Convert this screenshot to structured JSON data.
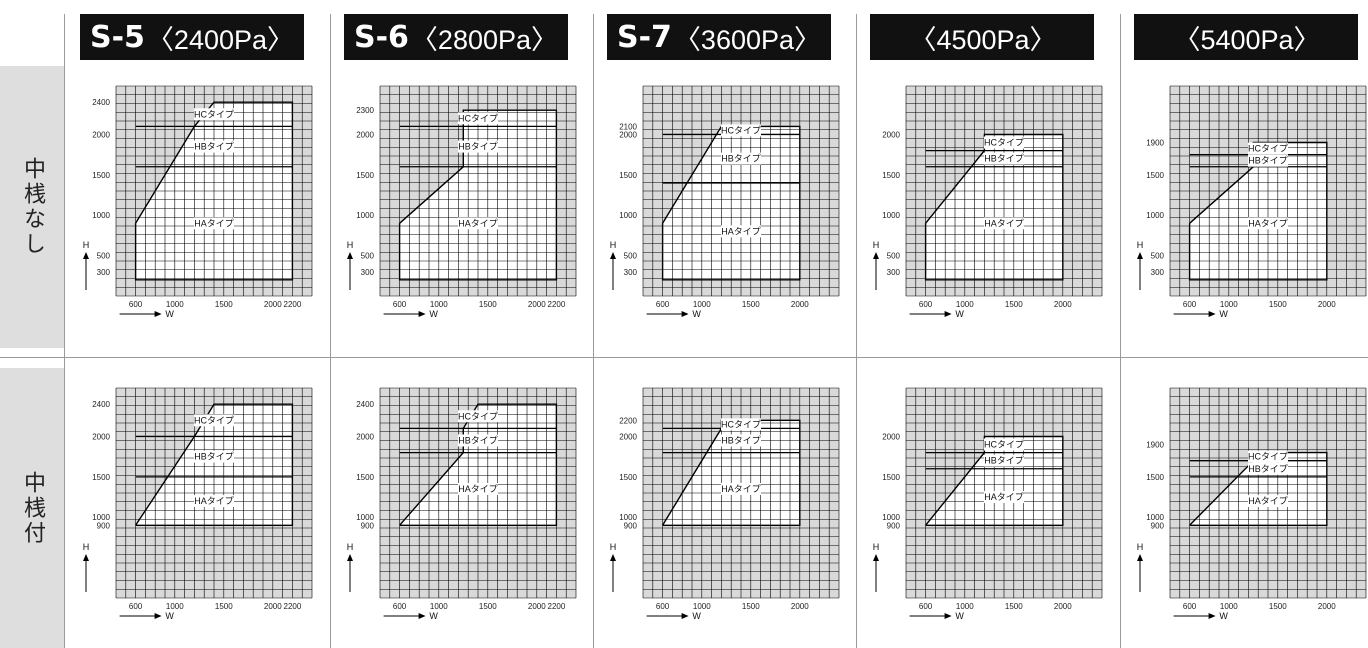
{
  "columns": [
    {
      "code": "S-5",
      "pressure": "〈2400Pa〉",
      "xticks": [
        "600",
        "1000",
        "1500",
        "2000",
        "2200"
      ]
    },
    {
      "code": "S-6",
      "pressure": "〈2800Pa〉",
      "xticks": [
        "600",
        "1000",
        "1500",
        "2000",
        "2200"
      ]
    },
    {
      "code": "S-7",
      "pressure": "〈3600Pa〉",
      "xticks": [
        "600",
        "1000",
        "1500",
        "2000"
      ]
    },
    {
      "code": "",
      "pressure": "〈4500Pa〉",
      "xticks": [
        "600",
        "1000",
        "1500",
        "2000"
      ]
    },
    {
      "code": "",
      "pressure": "〈5400Pa〉",
      "xticks": [
        "600",
        "1000",
        "1500",
        "2000"
      ]
    }
  ],
  "rows": [
    {
      "label": "中桟なし"
    },
    {
      "label": "中桟付"
    }
  ],
  "axis_labels": {
    "x": "W",
    "y": "H"
  },
  "colors": {
    "header_bg": "#111111",
    "row_label_bg": "#dedede",
    "shade": "#d9d9d9",
    "grid": "#000000"
  },
  "chart_data": [
    {
      "type": "area",
      "row": "中桟なし",
      "column": "S-5〈2400Pa〉",
      "yticks": [
        "2400",
        "2000",
        "1500",
        "1000",
        "500",
        "300"
      ],
      "region_outline": [
        [
          600,
          900
        ],
        [
          600,
          200
        ],
        [
          2200,
          200
        ],
        [
          2200,
          2400
        ],
        [
          1400,
          2400
        ],
        [
          1200,
          2100
        ],
        [
          600,
          900
        ]
      ],
      "type_bands": [
        {
          "name": "HCタイプ",
          "h_from": 2100,
          "h_to": 2400
        },
        {
          "name": "HBタイプ",
          "h_from": 1600,
          "h_to": 2100
        },
        {
          "name": "HAタイプ",
          "h_from": 200,
          "h_to": 1600
        }
      ]
    },
    {
      "type": "area",
      "row": "中桟なし",
      "column": "S-6〈2800Pa〉",
      "yticks": [
        "2300",
        "2000",
        "1500",
        "1000",
        "500",
        "300"
      ],
      "region_outline": [
        [
          600,
          900
        ],
        [
          600,
          200
        ],
        [
          2200,
          200
        ],
        [
          2200,
          2300
        ],
        [
          1250,
          2300
        ],
        [
          1250,
          1600
        ],
        [
          600,
          900
        ]
      ],
      "type_bands": [
        {
          "name": "HCタイプ",
          "h_from": 2100,
          "h_to": 2300
        },
        {
          "name": "HBタイプ",
          "h_from": 1600,
          "h_to": 2100
        },
        {
          "name": "HAタイプ",
          "h_from": 200,
          "h_to": 1600
        }
      ]
    },
    {
      "type": "area",
      "row": "中桟なし",
      "column": "S-7〈3600Pa〉",
      "yticks": [
        "2100",
        "2000",
        "1500",
        "1000",
        "500",
        "300"
      ],
      "region_outline": [
        [
          600,
          900
        ],
        [
          600,
          200
        ],
        [
          2000,
          200
        ],
        [
          2000,
          2100
        ],
        [
          1200,
          2100
        ],
        [
          600,
          900
        ]
      ],
      "type_bands": [
        {
          "name": "HCタイプ",
          "h_from": 2000,
          "h_to": 2100
        },
        {
          "name": "HBタイプ",
          "h_from": 1400,
          "h_to": 2000
        },
        {
          "name": "HAタイプ",
          "h_from": 200,
          "h_to": 1400
        }
      ]
    },
    {
      "type": "area",
      "row": "中桟なし",
      "column": "〈4500Pa〉",
      "yticks": [
        "2000",
        "1500",
        "1000",
        "500",
        "300"
      ],
      "region_outline": [
        [
          600,
          900
        ],
        [
          600,
          200
        ],
        [
          2000,
          200
        ],
        [
          2000,
          2000
        ],
        [
          1200,
          2000
        ],
        [
          1200,
          1800
        ],
        [
          600,
          900
        ]
      ],
      "type_bands": [
        {
          "name": "HCタイプ",
          "h_from": 1800,
          "h_to": 2000
        },
        {
          "name": "HBタイプ",
          "h_from": 1600,
          "h_to": 1800
        },
        {
          "name": "HAタイプ",
          "h_from": 200,
          "h_to": 1600
        }
      ]
    },
    {
      "type": "area",
      "row": "中桟なし",
      "column": "〈5400Pa〉",
      "yticks": [
        "1900",
        "1500",
        "1000",
        "500",
        "300"
      ],
      "region_outline": [
        [
          600,
          900
        ],
        [
          600,
          200
        ],
        [
          2000,
          200
        ],
        [
          2000,
          1900
        ],
        [
          1250,
          1900
        ],
        [
          1250,
          1600
        ],
        [
          600,
          900
        ]
      ],
      "type_bands": [
        {
          "name": "HCタイプ",
          "h_from": 1750,
          "h_to": 1900
        },
        {
          "name": "HBタイプ",
          "h_from": 1600,
          "h_to": 1750
        },
        {
          "name": "HAタイプ",
          "h_from": 200,
          "h_to": 1600
        }
      ]
    },
    {
      "type": "area",
      "row": "中桟付",
      "column": "S-5〈2400Pa〉",
      "yticks": [
        "2400",
        "2000",
        "1500",
        "1000",
        "900"
      ],
      "region_outline": [
        [
          600,
          900
        ],
        [
          1200,
          2000
        ],
        [
          1400,
          2400
        ],
        [
          2200,
          2400
        ],
        [
          2200,
          900
        ],
        [
          600,
          900
        ]
      ],
      "type_bands": [
        {
          "name": "HCタイプ",
          "h_from": 2000,
          "h_to": 2400
        },
        {
          "name": "HBタイプ",
          "h_from": 1500,
          "h_to": 2000
        },
        {
          "name": "HAタイプ",
          "h_from": 900,
          "h_to": 1500
        }
      ]
    },
    {
      "type": "area",
      "row": "中桟付",
      "column": "S-6〈2800Pa〉",
      "yticks": [
        "2400",
        "2000",
        "1500",
        "1000",
        "900"
      ],
      "region_outline": [
        [
          600,
          900
        ],
        [
          1250,
          1800
        ],
        [
          1250,
          2100
        ],
        [
          1400,
          2400
        ],
        [
          2200,
          2400
        ],
        [
          2200,
          900
        ],
        [
          600,
          900
        ]
      ],
      "type_bands": [
        {
          "name": "HCタイプ",
          "h_from": 2100,
          "h_to": 2400
        },
        {
          "name": "HBタイプ",
          "h_from": 1800,
          "h_to": 2100
        },
        {
          "name": "HAタイプ",
          "h_from": 900,
          "h_to": 1800
        }
      ]
    },
    {
      "type": "area",
      "row": "中桟付",
      "column": "S-7〈3600Pa〉",
      "yticks": [
        "2200",
        "2000",
        "1500",
        "1000",
        "900"
      ],
      "region_outline": [
        [
          600,
          900
        ],
        [
          1200,
          2100
        ],
        [
          1200,
          2200
        ],
        [
          2000,
          2200
        ],
        [
          2000,
          900
        ],
        [
          600,
          900
        ]
      ],
      "type_bands": [
        {
          "name": "HCタイプ",
          "h_from": 2100,
          "h_to": 2200
        },
        {
          "name": "HBタイプ",
          "h_from": 1800,
          "h_to": 2100
        },
        {
          "name": "HAタイプ",
          "h_from": 900,
          "h_to": 1800
        }
      ]
    },
    {
      "type": "area",
      "row": "中桟付",
      "column": "〈4500Pa〉",
      "yticks": [
        "2000",
        "1500",
        "1000",
        "900"
      ],
      "region_outline": [
        [
          600,
          900
        ],
        [
          1200,
          1800
        ],
        [
          1200,
          2000
        ],
        [
          2000,
          2000
        ],
        [
          2000,
          900
        ],
        [
          600,
          900
        ]
      ],
      "type_bands": [
        {
          "name": "HCタイプ",
          "h_from": 1800,
          "h_to": 2000
        },
        {
          "name": "HBタイプ",
          "h_from": 1600,
          "h_to": 1800
        },
        {
          "name": "HAタイプ",
          "h_from": 900,
          "h_to": 1600
        }
      ]
    },
    {
      "type": "area",
      "row": "中桟付",
      "column": "〈5400Pa〉",
      "yticks": [
        "1900",
        "1500",
        "1000",
        "900"
      ],
      "region_outline": [
        [
          600,
          900
        ],
        [
          1250,
          1700
        ],
        [
          1250,
          1800
        ],
        [
          2000,
          1800
        ],
        [
          2000,
          900
        ],
        [
          600,
          900
        ]
      ],
      "type_bands": [
        {
          "name": "HCタイプ",
          "h_from": 1700,
          "h_to": 1800
        },
        {
          "name": "HBタイプ",
          "h_from": 1500,
          "h_to": 1700
        },
        {
          "name": "HAタイプ",
          "h_from": 900,
          "h_to": 1500
        }
      ]
    }
  ]
}
